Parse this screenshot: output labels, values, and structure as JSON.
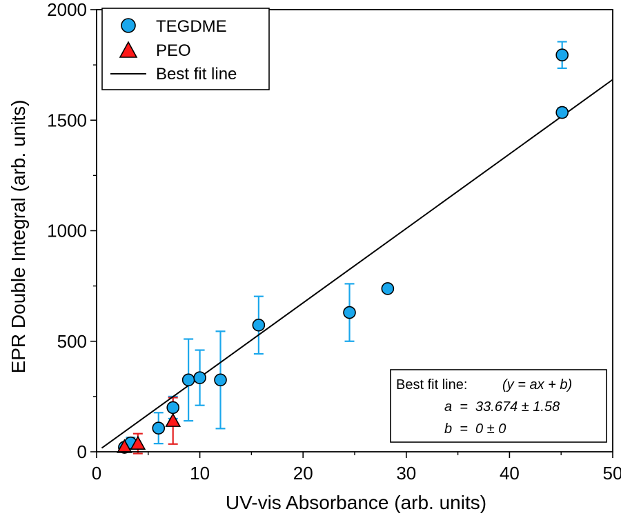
{
  "chart_data": {
    "type": "scatter",
    "xlabel": "UV-vis Absorbance (arb. units)",
    "ylabel": "EPR Double Integral (arb. units)",
    "xlim": [
      0,
      50
    ],
    "ylim": [
      0,
      2000
    ],
    "xticks": [
      0,
      10,
      20,
      30,
      40,
      50
    ],
    "yticks": [
      0,
      500,
      1000,
      1500,
      2000
    ],
    "grid": false,
    "legend_position": "top-left",
    "series": [
      {
        "name": "TEGDME",
        "marker": "circle",
        "color": "#1aa7ec",
        "errorbar_color": "#1aa7ec",
        "points": [
          {
            "x": 2.7,
            "y": 20,
            "err": 15
          },
          {
            "x": 3.3,
            "y": 40,
            "err": 25
          },
          {
            "x": 6.0,
            "y": 107,
            "err": 70
          },
          {
            "x": 7.4,
            "y": 200,
            "err": 50
          },
          {
            "x": 8.9,
            "y": 325,
            "err": 185
          },
          {
            "x": 10.0,
            "y": 335,
            "err": 125
          },
          {
            "x": 12.0,
            "y": 325,
            "err": 220
          },
          {
            "x": 15.7,
            "y": 573,
            "err": 130
          },
          {
            "x": 24.5,
            "y": 630,
            "err": 130
          },
          {
            "x": 28.2,
            "y": 738,
            "err": 0
          },
          {
            "x": 45.1,
            "y": 1535,
            "err": 20
          },
          {
            "x": 45.1,
            "y": 1795,
            "err": 60
          }
        ]
      },
      {
        "name": "PEO",
        "marker": "triangle",
        "color": "#ff1a1a",
        "errorbar_color": "#e52222",
        "points": [
          {
            "x": 2.7,
            "y": 22,
            "err": 10
          },
          {
            "x": 4.0,
            "y": 37,
            "err": 45
          },
          {
            "x": 7.4,
            "y": 140,
            "err": 105
          }
        ]
      }
    ],
    "fit_line": {
      "name": "Best fit line",
      "color": "#000000",
      "slope": 33.674,
      "intercept": 0,
      "x_range": [
        0.5,
        50
      ]
    },
    "annotation": {
      "title": "Best fit line:",
      "equation": "(y = ax + b)",
      "a_line": "a  =  33.674 ± 1.58",
      "b_line": "b  =  0 ± 0"
    }
  }
}
